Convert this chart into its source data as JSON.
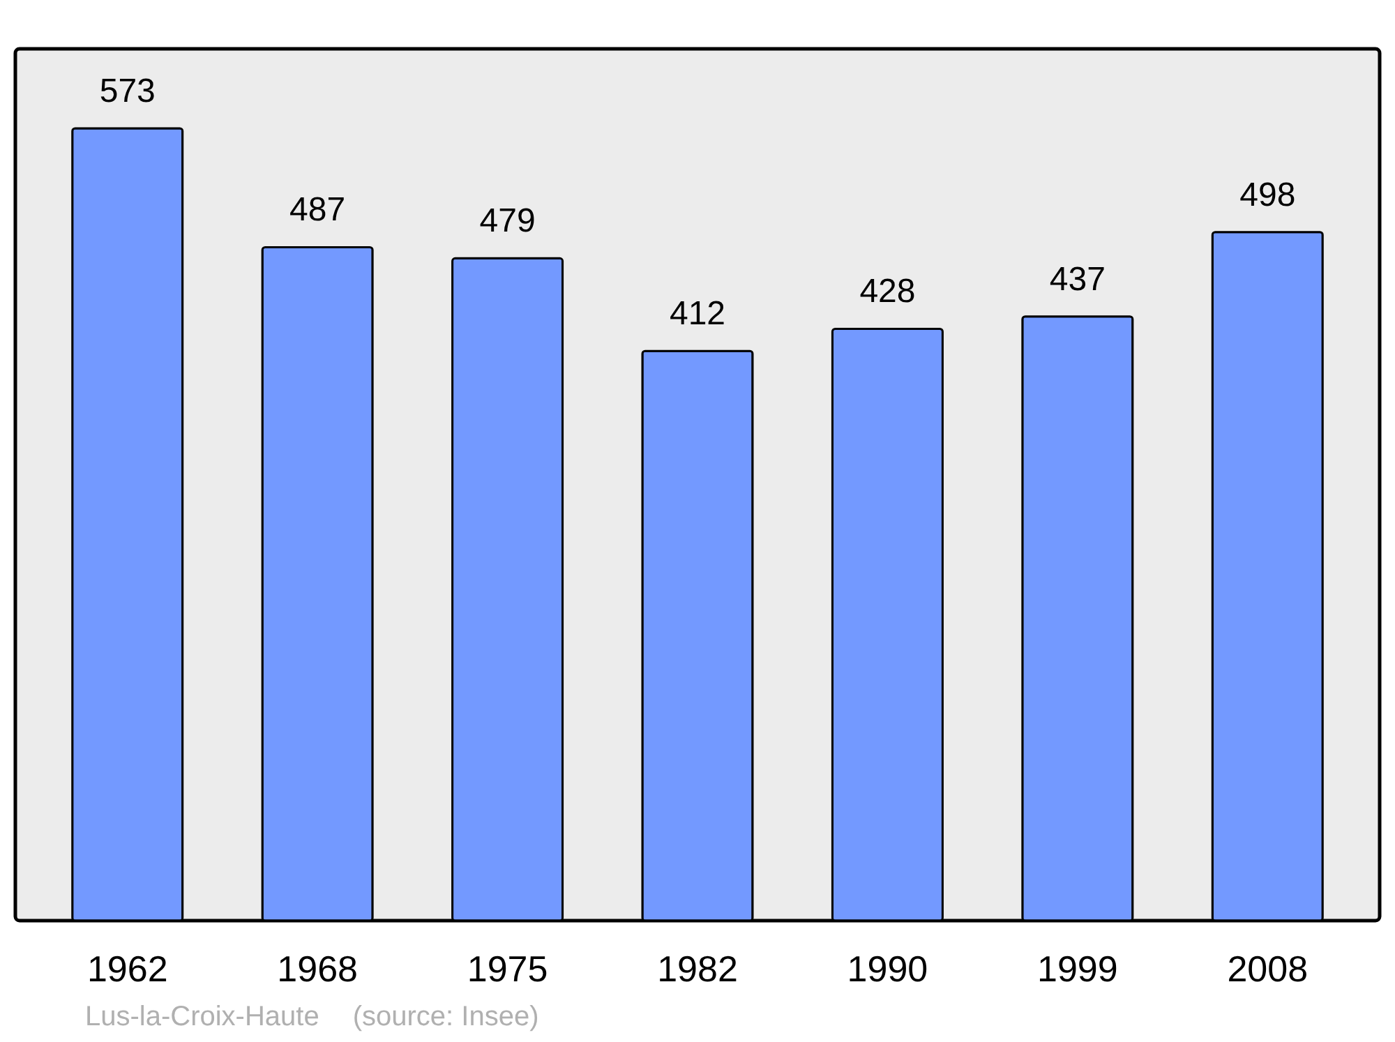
{
  "chart_data": {
    "type": "bar",
    "categories": [
      "1962",
      "1968",
      "1975",
      "1982",
      "1990",
      "1999",
      "2008"
    ],
    "values": [
      573,
      487,
      479,
      412,
      428,
      437,
      498
    ],
    "color": "#7399ff",
    "data_labels": true,
    "grid": false,
    "annotations": [
      "Lus-la-Croix-Haute",
      "(source: Insee)"
    ]
  }
}
